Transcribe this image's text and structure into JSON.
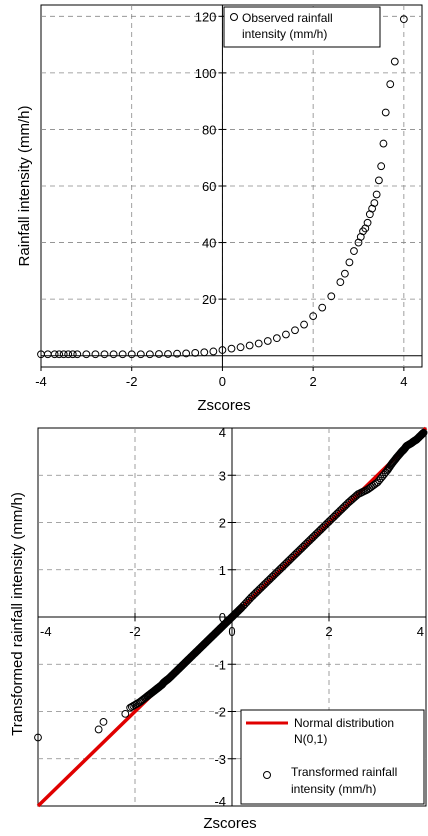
{
  "chart_data": [
    {
      "type": "scatter",
      "xlabel": "Zscores",
      "ylabel": "Rainfall intensity (mm/h)",
      "xlim": [
        -4,
        4.4
      ],
      "ylim": [
        -4,
        124
      ],
      "x_ticks": [
        "-4",
        "-2",
        "0",
        "2",
        "4"
      ],
      "y_ticks": [
        "20",
        "40",
        "60",
        "80",
        "100",
        "120"
      ],
      "grid": true,
      "legend_position": "top-right",
      "legend": [
        {
          "name": "Observed rainfall intensity (mm/h)",
          "lines": [
            "Observed rainfall",
            "intensity (mm/h)"
          ],
          "marker": "open-circle"
        }
      ],
      "series": [
        {
          "name": "Observed rainfall intensity (mm/h)",
          "marker": "open-circle",
          "x": [
            -4.0,
            -3.85,
            -3.7,
            -3.6,
            -3.5,
            -3.4,
            -3.3,
            -3.2,
            -3.0,
            -2.8,
            -2.6,
            -2.4,
            -2.2,
            -2.0,
            -1.8,
            -1.6,
            -1.4,
            -1.2,
            -1.0,
            -0.8,
            -0.6,
            -0.4,
            -0.2,
            0.0,
            0.2,
            0.4,
            0.6,
            0.8,
            1.0,
            1.2,
            1.4,
            1.6,
            1.8,
            2.0,
            2.2,
            2.4,
            2.6,
            2.7,
            2.8,
            2.9,
            3.0,
            3.05,
            3.1,
            3.15,
            3.2,
            3.25,
            3.3,
            3.35,
            3.4,
            3.45,
            3.5,
            3.55,
            3.6,
            3.7,
            3.8,
            4.0
          ],
          "y": [
            0.5,
            0.5,
            0.5,
            0.5,
            0.5,
            0.5,
            0.5,
            0.5,
            0.5,
            0.5,
            0.5,
            0.5,
            0.5,
            0.5,
            0.5,
            0.5,
            0.6,
            0.6,
            0.7,
            0.8,
            1.0,
            1.2,
            1.5,
            2.0,
            2.5,
            3.0,
            3.6,
            4.3,
            5.2,
            6.2,
            7.5,
            9.0,
            11.0,
            14.0,
            17.0,
            21.0,
            26.0,
            29.0,
            33.0,
            37.0,
            40.0,
            42.0,
            44.0,
            45.0,
            47.0,
            50.0,
            52.0,
            54.0,
            57.0,
            62.0,
            67.0,
            75.0,
            86.0,
            96.0,
            104.0,
            119.0
          ]
        }
      ]
    },
    {
      "type": "scatter",
      "xlabel": "Zscores",
      "ylabel": "Transformed rainfall intensity (mm/h)",
      "xlim": [
        -4,
        4
      ],
      "ylim": [
        -4,
        4
      ],
      "x_ticks": [
        "-4",
        "-2",
        "0",
        "2",
        "4"
      ],
      "y_ticks": [
        "-4",
        "-3",
        "-2",
        "-1",
        "0",
        "1",
        "2",
        "3",
        "4"
      ],
      "grid": true,
      "legend_position": "bottom-right",
      "legend": [
        {
          "name": "Normal distribution N(0,1)",
          "lines": [
            "Normal distribution",
            "N(0,1)"
          ],
          "marker": "red-line",
          "color": "#e00000"
        },
        {
          "name": "Transformed rainfall intensity (mm/h)",
          "lines": [
            "Transformed rainfall",
            "intensity (mm/h)"
          ],
          "marker": "open-circle"
        }
      ],
      "series": [
        {
          "name": "Normal distribution N(0,1)",
          "type": "line",
          "color": "#e00000",
          "x": [
            -4,
            4
          ],
          "y": [
            -4,
            4
          ]
        },
        {
          "name": "Transformed rainfall intensity (mm/h)",
          "marker": "open-circle",
          "x": [
            -4.0,
            -2.75,
            -2.65,
            -2.2,
            -2.1,
            -1.9,
            -1.75,
            -1.65,
            -1.55,
            -1.45,
            -1.4,
            -1.3,
            -1.2,
            -1.1,
            -1.0,
            -0.9,
            -0.8,
            -0.7,
            -0.6,
            -0.5,
            -0.4,
            -0.3,
            -0.2,
            -0.1,
            0.0,
            0.1,
            0.2,
            0.4,
            0.6,
            0.8,
            1.0,
            1.2,
            1.4,
            1.6,
            1.8,
            2.0,
            2.2,
            2.4,
            2.6,
            2.8,
            3.0,
            3.2,
            3.3,
            3.4,
            3.5,
            3.55,
            3.6,
            3.7,
            3.75,
            3.8,
            3.85,
            3.9,
            3.95
          ],
          "y": [
            -2.55,
            -2.38,
            -2.22,
            -2.05,
            -1.92,
            -1.8,
            -1.68,
            -1.6,
            -1.52,
            -1.44,
            -1.38,
            -1.3,
            -1.2,
            -1.1,
            -1.0,
            -0.9,
            -0.8,
            -0.7,
            -0.6,
            -0.5,
            -0.4,
            -0.3,
            -0.2,
            -0.1,
            0.0,
            0.1,
            0.2,
            0.42,
            0.62,
            0.82,
            1.02,
            1.22,
            1.42,
            1.62,
            1.82,
            2.02,
            2.22,
            2.42,
            2.6,
            2.7,
            2.85,
            3.1,
            3.25,
            3.38,
            3.5,
            3.55,
            3.62,
            3.68,
            3.72,
            3.75,
            3.8,
            3.85,
            3.9
          ]
        }
      ]
    }
  ]
}
